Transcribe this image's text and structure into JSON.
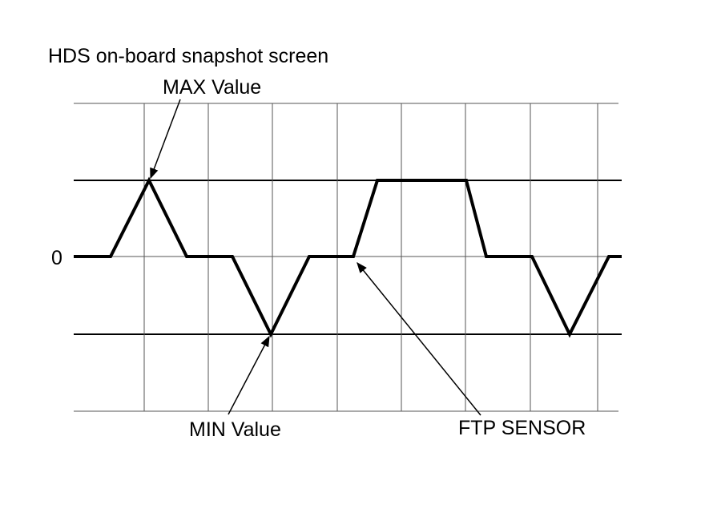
{
  "title": "HDS on-board snapshot screen",
  "labels": {
    "max": "MAX Value",
    "zero": "0",
    "min": "MIN Value",
    "sensor": "FTP SENSOR"
  }
}
